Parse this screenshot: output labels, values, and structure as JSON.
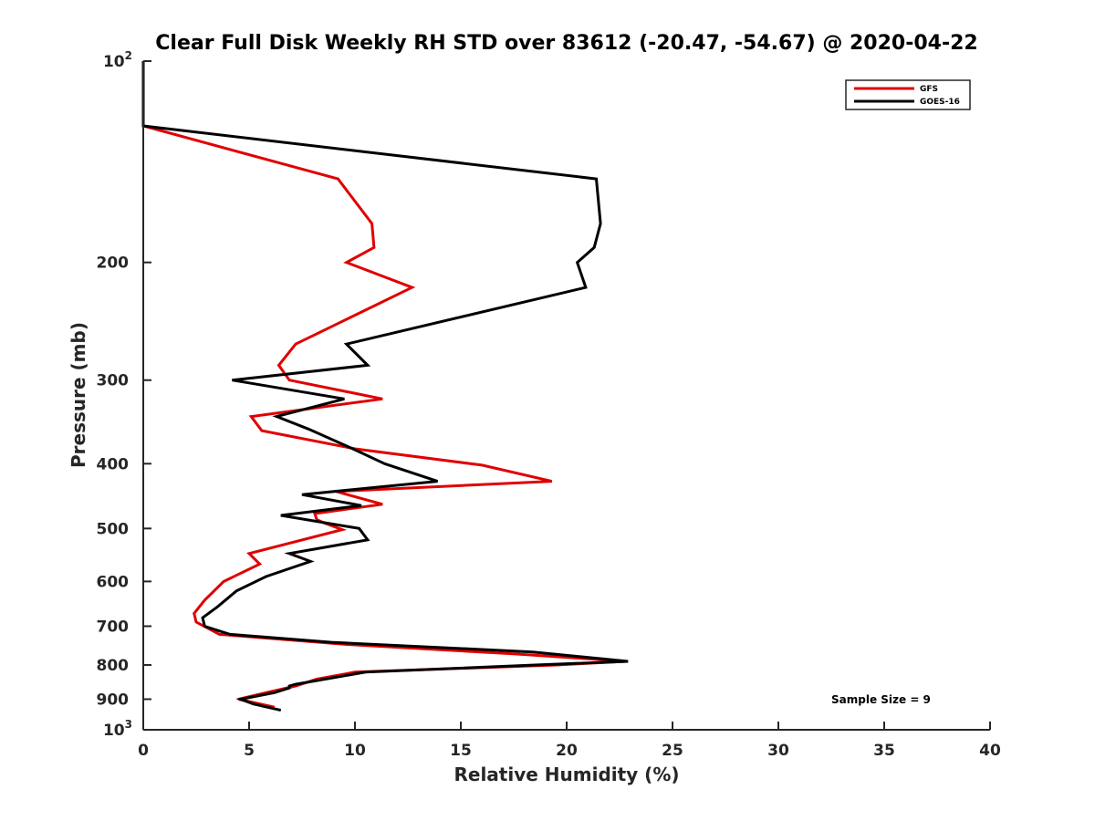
{
  "chart_data": {
    "type": "line",
    "title": "Clear Full Disk Weekly RH STD over 83612 (-20.47, -54.67) @ 2020-04-22",
    "xlabel": "Relative Humidity (%)",
    "ylabel": "Pressure (mb)",
    "xlim": [
      0,
      40
    ],
    "ylim": [
      100,
      1000
    ],
    "y_scale": "log",
    "y_reversed": true,
    "x_ticks": [
      0,
      5,
      10,
      15,
      20,
      25,
      30,
      35,
      40
    ],
    "x_tick_labels": [
      "0",
      "5",
      "10",
      "15",
      "20",
      "25",
      "30",
      "35",
      "40"
    ],
    "y_ticks": [
      {
        "value": 100,
        "label": "10",
        "exp": "2"
      },
      {
        "value": 200,
        "label": "200"
      },
      {
        "value": 300,
        "label": "300"
      },
      {
        "value": 400,
        "label": "400"
      },
      {
        "value": 500,
        "label": "500"
      },
      {
        "value": 600,
        "label": "600"
      },
      {
        "value": 700,
        "label": "700"
      },
      {
        "value": 800,
        "label": "800"
      },
      {
        "value": 900,
        "label": "900"
      },
      {
        "value": 1000,
        "label": "10",
        "exp": "3"
      }
    ],
    "grid": false,
    "legend_position": "top-right",
    "annotation": "Sample Size = 9",
    "series": [
      {
        "name": "GFS",
        "color": "#e00000",
        "points": [
          [
            0,
            100
          ],
          [
            0,
            125
          ],
          [
            9.2,
            150
          ],
          [
            10.8,
            175
          ],
          [
            10.9,
            190
          ],
          [
            9.6,
            200
          ],
          [
            12.7,
            218
          ],
          [
            9.4,
            245
          ],
          [
            7.2,
            265
          ],
          [
            6.4,
            285
          ],
          [
            6.9,
            300
          ],
          [
            11.3,
            320
          ],
          [
            5.1,
            340
          ],
          [
            5.6,
            357
          ],
          [
            10.0,
            380
          ],
          [
            16.0,
            402
          ],
          [
            19.3,
            425
          ],
          [
            9.1,
            440
          ],
          [
            11.3,
            460
          ],
          [
            8.1,
            475
          ],
          [
            8.2,
            485
          ],
          [
            8.5,
            490
          ],
          [
            9.4,
            502
          ],
          [
            5.0,
            545
          ],
          [
            5.5,
            565
          ],
          [
            3.8,
            600
          ],
          [
            2.9,
            640
          ],
          [
            2.4,
            670
          ],
          [
            2.5,
            690
          ],
          [
            3.6,
            720
          ],
          [
            9.5,
            745
          ],
          [
            17.5,
            770
          ],
          [
            22.8,
            790
          ],
          [
            19.5,
            800
          ],
          [
            10.0,
            820
          ],
          [
            8.2,
            840
          ],
          [
            7.2,
            860
          ],
          [
            5.8,
            880
          ],
          [
            4.5,
            900
          ],
          [
            6.2,
            925
          ]
        ]
      },
      {
        "name": "GOES-16",
        "color": "#000000",
        "points": [
          [
            0,
            100
          ],
          [
            0,
            125
          ],
          [
            21.4,
            150
          ],
          [
            21.6,
            175
          ],
          [
            21.3,
            190
          ],
          [
            20.5,
            200
          ],
          [
            20.9,
            218
          ],
          [
            9.6,
            265
          ],
          [
            10.6,
            285
          ],
          [
            4.2,
            300
          ],
          [
            9.5,
            320
          ],
          [
            6.3,
            340
          ],
          [
            7.8,
            355
          ],
          [
            9.9,
            380
          ],
          [
            11.4,
            400
          ],
          [
            13.9,
            425
          ],
          [
            7.5,
            445
          ],
          [
            10.3,
            462
          ],
          [
            6.5,
            478
          ],
          [
            10.2,
            500
          ],
          [
            10.6,
            520
          ],
          [
            6.9,
            545
          ],
          [
            7.9,
            560
          ],
          [
            5.8,
            590
          ],
          [
            4.4,
            620
          ],
          [
            3.5,
            655
          ],
          [
            2.8,
            680
          ],
          [
            2.9,
            700
          ],
          [
            4.1,
            720
          ],
          [
            8.9,
            740
          ],
          [
            18.4,
            765
          ],
          [
            22.9,
            790
          ],
          [
            18.5,
            800
          ],
          [
            10.5,
            820
          ],
          [
            7.2,
            855
          ],
          [
            6.9,
            860
          ],
          [
            6.9,
            866
          ],
          [
            6.2,
            880
          ],
          [
            4.6,
            900
          ],
          [
            5.2,
            915
          ],
          [
            6.5,
            935
          ]
        ]
      }
    ]
  }
}
